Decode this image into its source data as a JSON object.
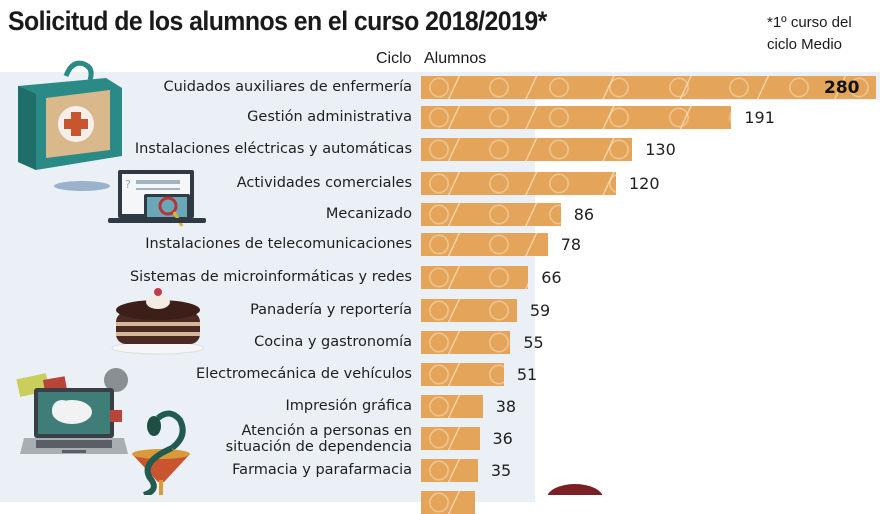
{
  "header": {
    "title": "Solicitud de los alumnos en el curso 2018/2019*",
    "footnote_line1": "*1º curso del",
    "footnote_line2": "ciclo Medio",
    "column_ciclo": "Ciclo",
    "column_alumnos": "Alumnos"
  },
  "colors": {
    "bar": "#e4a55a",
    "band": "#eaf0f6",
    "text": "#1f1f1f"
  },
  "illustrations": [
    {
      "name": "first-aid-kit-icon",
      "row": "Cuidados auxiliares de enfermería"
    },
    {
      "name": "computer-search-icon",
      "row": "Actividades comerciales"
    },
    {
      "name": "cake-icon",
      "row": "Panadería y reportería"
    },
    {
      "name": "laptop-cloud-icon",
      "row": "Electromecánica de vehículos"
    },
    {
      "name": "pharmacy-snake-cup-icon",
      "row": "Farmacia y parafarmacia"
    }
  ],
  "chart_data": {
    "type": "bar",
    "orientation": "horizontal",
    "title": "Solicitud de los alumnos en el curso 2018/2019*",
    "note": "*1º curso del ciclo Medio",
    "xlabel": "Alumnos",
    "ylabel": "Ciclo",
    "grid": false,
    "legend": "none",
    "xlim": [
      0,
      280
    ],
    "categories": [
      "Cuidados auxiliares de enfermería",
      "Gestión administrativa",
      "Instalaciones eléctricas y automáticas",
      "Actividades comerciales",
      "Mecanizado",
      "Instalaciones de telecomunicaciones",
      "Sistemas de microinformáticas y redes",
      "Panadería y reportería",
      "Cocina y gastronomía",
      "Electromecánica de vehículos",
      "Impresión gráfica",
      "Atención a personas en situación de dependencia",
      "Farmacia y parafarmacia"
    ],
    "label_lines": [
      [
        "Cuidados auxiliares de enfermería"
      ],
      [
        "Gestión administrativa"
      ],
      [
        "Instalaciones eléctricas y automáticas"
      ],
      [
        "Actividades comerciales"
      ],
      [
        "Mecanizado"
      ],
      [
        "Instalaciones de telecomunicaciones"
      ],
      [
        "Sistemas de microinformáticas y redes"
      ],
      [
        "Panadería y reportería"
      ],
      [
        "Cocina y gastronomía"
      ],
      [
        "Electromecánica de vehículos"
      ],
      [
        "Impresión gráfica"
      ],
      [
        "Atención a personas en",
        "situación de dependencia"
      ],
      [
        "Farmacia y parafarmacia"
      ]
    ],
    "values": [
      280,
      191,
      130,
      120,
      86,
      78,
      66,
      59,
      55,
      51,
      38,
      36,
      35
    ],
    "value_labels": [
      "280",
      "191",
      "130",
      "120",
      "86",
      "78",
      "66",
      "59",
      "55",
      "51",
      "38",
      "36",
      "35"
    ]
  }
}
